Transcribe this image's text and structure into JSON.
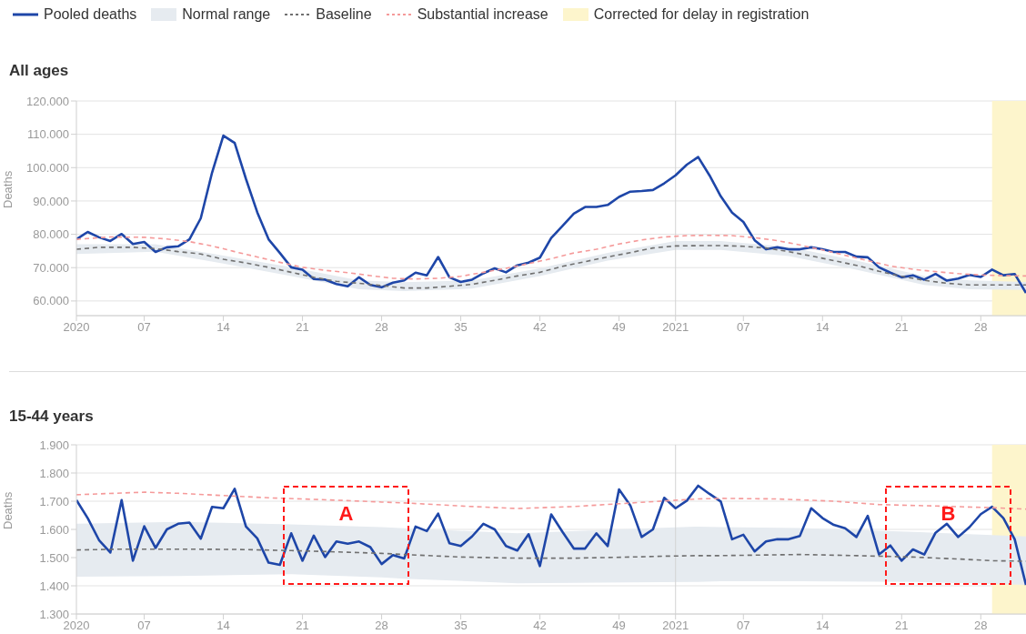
{
  "chart_data": [
    {
      "type": "line",
      "title": "All ages",
      "ylabel": "Deaths",
      "ylim": [
        55600,
        120000
      ],
      "categories": [
        "2020",
        null,
        null,
        null,
        null,
        null,
        "07",
        null,
        null,
        null,
        null,
        null,
        null,
        "14",
        null,
        null,
        null,
        null,
        null,
        null,
        "21",
        null,
        null,
        null,
        null,
        null,
        null,
        "28",
        null,
        null,
        null,
        null,
        null,
        null,
        "35",
        null,
        null,
        null,
        null,
        null,
        null,
        "42",
        null,
        null,
        null,
        null,
        null,
        null,
        "49",
        null,
        null,
        null,
        null,
        "2021",
        null,
        null,
        null,
        null,
        null,
        "07",
        null,
        null,
        null,
        null,
        null,
        null,
        "14",
        null,
        null,
        null,
        null,
        null,
        null,
        "21",
        null,
        null,
        null,
        null,
        null,
        null,
        "28",
        null,
        null,
        null,
        null
      ],
      "yticks": [
        {
          "value": 60000,
          "label": "60.000"
        },
        {
          "value": 70000,
          "label": "70.000"
        },
        {
          "value": 80000,
          "label": "80.000"
        },
        {
          "value": 90000,
          "label": "90.000"
        },
        {
          "value": 100000,
          "label": "100.000"
        },
        {
          "value": 110000,
          "label": "110.000"
        },
        {
          "value": 120000,
          "label": "120.000"
        }
      ],
      "grid": "y",
      "legend": "top",
      "marker": "none",
      "annotations": [
        "Normal range",
        "Corrected for delay in registration"
      ],
      "ref_lines": [
        {
          "axis": "x",
          "value": "2021",
          "color": "#d4d4d4"
        }
      ],
      "series": [
        {
          "name": "Pooled deaths",
          "line_style": "solid",
          "color": "#1e46a8",
          "values": [
            78500,
            80700,
            79100,
            78000,
            80100,
            77100,
            77700,
            74700,
            76100,
            76400,
            78500,
            84800,
            98500,
            109600,
            107400,
            96600,
            86600,
            78500,
            74400,
            70100,
            69400,
            66600,
            66400,
            65100,
            64400,
            67100,
            64800,
            64100,
            65500,
            66200,
            68500,
            67700,
            73200,
            67100,
            65700,
            66400,
            68300,
            69800,
            68600,
            70700,
            71500,
            73000,
            78900,
            82500,
            86200,
            88200,
            88200,
            88800,
            91200,
            92800,
            93000,
            93300,
            95300,
            97700,
            100900,
            103200,
            97700,
            91400,
            86500,
            83700,
            78200,
            75500,
            76100,
            75500,
            75500,
            76100,
            75500,
            74700,
            74700,
            73300,
            73100,
            70100,
            68500,
            67100,
            67700,
            66400,
            68100,
            66100,
            66700,
            67800,
            67200,
            69400,
            67700,
            68100,
            62400
          ]
        },
        {
          "name": "Baseline",
          "line_style": "dashed",
          "color": "#707070",
          "values": [
            75500,
            null,
            76100,
            null,
            null,
            76100,
            null,
            75700,
            null,
            74800,
            null,
            74100,
            null,
            72500,
            null,
            71400,
            null,
            70100,
            null,
            68600,
            null,
            67100,
            null,
            65900,
            null,
            65300,
            null,
            64600,
            null,
            63900,
            null,
            63900,
            null,
            64400,
            null,
            65000,
            null,
            66200,
            null,
            67500,
            null,
            68600,
            null,
            70400,
            null,
            71800,
            null,
            73200,
            null,
            74500,
            null,
            75900,
            null,
            76500,
            null,
            76600,
            null,
            76600,
            null,
            76400,
            null,
            75900,
            null,
            74800,
            null,
            73500,
            null,
            72100,
            null,
            70700,
            null,
            68900,
            null,
            67400,
            null,
            66200,
            null,
            65300,
            null,
            64800,
            null,
            64800,
            null,
            null,
            64800
          ],
          "lower": [
            74100,
            null,
            null,
            null,
            null,
            null,
            null,
            74800,
            null,
            null,
            null,
            null,
            null,
            71200,
            null,
            null,
            null,
            null,
            null,
            67500,
            null,
            null,
            null,
            null,
            null,
            63500,
            null,
            null,
            null,
            63000,
            null,
            null,
            null,
            null,
            null,
            63700,
            null,
            null,
            null,
            null,
            null,
            67500,
            null,
            null,
            null,
            null,
            null,
            72100,
            null,
            null,
            null,
            null,
            null,
            75300,
            null,
            null,
            null,
            75300,
            null,
            null,
            null,
            null,
            null,
            73500,
            null,
            null,
            null,
            null,
            null,
            69400,
            null,
            null,
            null,
            null,
            null,
            64800,
            null,
            null,
            null,
            63500,
            null,
            null,
            null,
            null,
            63300
          ],
          "upper": [
            77000,
            null,
            null,
            null,
            null,
            null,
            null,
            77000,
            null,
            null,
            null,
            null,
            null,
            73600,
            null,
            null,
            null,
            null,
            null,
            70100,
            null,
            null,
            null,
            null,
            null,
            66200,
            null,
            null,
            null,
            65600,
            null,
            null,
            null,
            null,
            null,
            66200,
            null,
            null,
            null,
            null,
            null,
            69800,
            null,
            null,
            null,
            null,
            null,
            74400,
            null,
            null,
            null,
            null,
            null,
            78000,
            null,
            null,
            null,
            78000,
            null,
            null,
            null,
            null,
            null,
            76200,
            null,
            null,
            null,
            null,
            null,
            72100,
            null,
            null,
            null,
            null,
            null,
            67500,
            null,
            null,
            null,
            66200,
            null,
            null,
            null,
            null,
            65700
          ]
        },
        {
          "name": "Substantial increase",
          "line_style": "dashed",
          "color": "#f59a9a",
          "values": [
            78500,
            null,
            null,
            79200,
            null,
            null,
            79100,
            null,
            78600,
            null,
            77800,
            null,
            76500,
            null,
            74800,
            null,
            73200,
            null,
            71600,
            null,
            70100,
            null,
            69200,
            null,
            68500,
            null,
            67600,
            null,
            66800,
            null,
            66600,
            null,
            66800,
            null,
            67400,
            null,
            68600,
            null,
            69800,
            null,
            71200,
            null,
            72700,
            null,
            74400,
            null,
            75500,
            null,
            77100,
            null,
            78300,
            null,
            79200,
            null,
            79600,
            null,
            79700,
            null,
            79600,
            null,
            79000,
            null,
            78100,
            null,
            76800,
            null,
            75300,
            null,
            73700,
            null,
            72100,
            null,
            70500,
            null,
            69500,
            null,
            68800,
            null,
            68200,
            null,
            67800,
            null,
            67600,
            null,
            67500
          ]
        }
      ]
    },
    {
      "type": "line",
      "title": "15-44 years",
      "ylabel": "Deaths",
      "ylim": [
        1300,
        1900
      ],
      "categories": [
        "2020",
        null,
        null,
        null,
        null,
        null,
        "07",
        null,
        null,
        null,
        null,
        null,
        null,
        "14",
        null,
        null,
        null,
        null,
        null,
        null,
        "21",
        null,
        null,
        null,
        null,
        null,
        null,
        "28",
        null,
        null,
        null,
        null,
        null,
        null,
        "35",
        null,
        null,
        null,
        null,
        null,
        null,
        "42",
        null,
        null,
        null,
        null,
        null,
        null,
        "49",
        null,
        null,
        null,
        null,
        "2021",
        null,
        null,
        null,
        null,
        null,
        "07",
        null,
        null,
        null,
        null,
        null,
        null,
        "14",
        null,
        null,
        null,
        null,
        null,
        null,
        "21",
        null,
        null,
        null,
        null,
        null,
        null,
        "28",
        null,
        null,
        null,
        null
      ],
      "yticks": [
        {
          "value": 1300,
          "label": "1.300"
        },
        {
          "value": 1400,
          "label": "1.400"
        },
        {
          "value": 1500,
          "label": "1.500"
        },
        {
          "value": 1600,
          "label": "1.600"
        },
        {
          "value": 1700,
          "label": "1.700"
        },
        {
          "value": 1800,
          "label": "1.800"
        },
        {
          "value": 1900,
          "label": "1.900"
        }
      ],
      "grid": "y",
      "marker": "none",
      "ref_lines": [
        {
          "axis": "x",
          "value": "2021",
          "color": "#d4d4d4"
        }
      ],
      "annotations": [
        "A",
        "B"
      ],
      "series": [
        {
          "line_style": "solid",
          "color": "#1e46a8",
          "values": [
            1704,
            1640,
            1562,
            1518,
            1704,
            1489,
            1611,
            1534,
            1600,
            1620,
            1624,
            1567,
            1680,
            1675,
            1744,
            1610,
            1568,
            1482,
            1474,
            1586,
            1489,
            1578,
            1502,
            1557,
            1549,
            1557,
            1537,
            1477,
            1509,
            1497,
            1610,
            1594,
            1656,
            1551,
            1541,
            1575,
            1620,
            1600,
            1541,
            1525,
            1583,
            1470,
            1653,
            1591,
            1532,
            1532,
            1586,
            1541,
            1742,
            1685,
            1573,
            1600,
            1712,
            1675,
            1702,
            1755,
            1726,
            1699,
            1565,
            1581,
            1522,
            1557,
            1565,
            1565,
            1577,
            1675,
            1640,
            1616,
            1604,
            1573,
            1648,
            1511,
            1543,
            1489,
            1529,
            1511,
            1588,
            1620,
            1573,
            1608,
            1654,
            1680,
            1640,
            1565,
            1403
          ]
        },
        {
          "line_style": "dashed",
          "color": "#707070",
          "values": [
            1527,
            null,
            null,
            null,
            1530,
            null,
            null,
            null,
            null,
            1530,
            null,
            null,
            null,
            null,
            1529,
            null,
            null,
            null,
            null,
            1525,
            null,
            null,
            null,
            null,
            1519,
            null,
            null,
            1515,
            null,
            1511,
            null,
            null,
            null,
            null,
            1502,
            null,
            null,
            null,
            null,
            1498,
            null,
            null,
            null,
            null,
            1498,
            null,
            null,
            null,
            null,
            1502,
            null,
            null,
            1505,
            null,
            null,
            1507,
            null,
            1507,
            null,
            null,
            null,
            null,
            null,
            null,
            1511,
            null,
            null,
            null,
            null,
            1507,
            null,
            null,
            null,
            null,
            1502,
            null,
            null,
            null,
            1495,
            null,
            null,
            1489,
            null,
            null,
            1487
          ],
          "lower": [
            1432,
            null,
            null,
            null,
            null,
            null,
            null,
            null,
            null,
            1435,
            null,
            null,
            null,
            null,
            null,
            null,
            null,
            null,
            null,
            1441,
            null,
            null,
            null,
            null,
            null,
            null,
            null,
            1430,
            null,
            1425,
            null,
            null,
            null,
            null,
            null,
            null,
            null,
            null,
            null,
            1409,
            null,
            null,
            null,
            null,
            null,
            null,
            null,
            null,
            null,
            1412,
            null,
            null,
            null,
            null,
            null,
            1414,
            null,
            1416,
            null,
            null,
            null,
            null,
            null,
            null,
            1416,
            null,
            null,
            null,
            null,
            null,
            null,
            null,
            null,
            null,
            1414,
            null,
            null,
            null,
            null,
            null,
            null,
            null,
            null,
            null,
            1403
          ],
          "upper": [
            1620,
            null,
            null,
            null,
            null,
            null,
            null,
            null,
            null,
            1627,
            null,
            null,
            null,
            null,
            null,
            null,
            null,
            null,
            null,
            1618,
            null,
            null,
            null,
            null,
            null,
            null,
            null,
            1608,
            null,
            1604,
            null,
            null,
            null,
            null,
            null,
            null,
            null,
            null,
            null,
            1586,
            null,
            null,
            null,
            null,
            null,
            null,
            null,
            null,
            null,
            1602,
            null,
            null,
            null,
            null,
            null,
            1610,
            null,
            1608,
            null,
            null,
            null,
            null,
            null,
            null,
            1605,
            null,
            null,
            null,
            null,
            null,
            null,
            null,
            null,
            null,
            1591,
            null,
            null,
            null,
            null,
            null,
            null,
            null,
            null,
            null,
            1575
          ]
        },
        {
          "line_style": "dashed",
          "color": "#f59a9a",
          "values": [
            1723,
            null,
            null,
            null,
            1729,
            null,
            1732,
            null,
            null,
            1728,
            null,
            null,
            null,
            1720,
            null,
            null,
            null,
            1712,
            null,
            null,
            1708,
            null,
            null,
            null,
            1702,
            null,
            null,
            1697,
            null,
            1694,
            null,
            null,
            null,
            null,
            1683,
            null,
            null,
            null,
            null,
            1674,
            null,
            null,
            null,
            null,
            1681,
            null,
            null,
            null,
            1691,
            null,
            null,
            null,
            1701,
            null,
            null,
            1708,
            null,
            1710,
            null,
            null,
            null,
            null,
            1708,
            null,
            null,
            null,
            null,
            1700,
            null,
            null,
            null,
            1688,
            null,
            null,
            null,
            null,
            1683,
            null,
            null,
            null,
            null,
            1677,
            null,
            null,
            1672
          ]
        }
      ]
    }
  ]
}
